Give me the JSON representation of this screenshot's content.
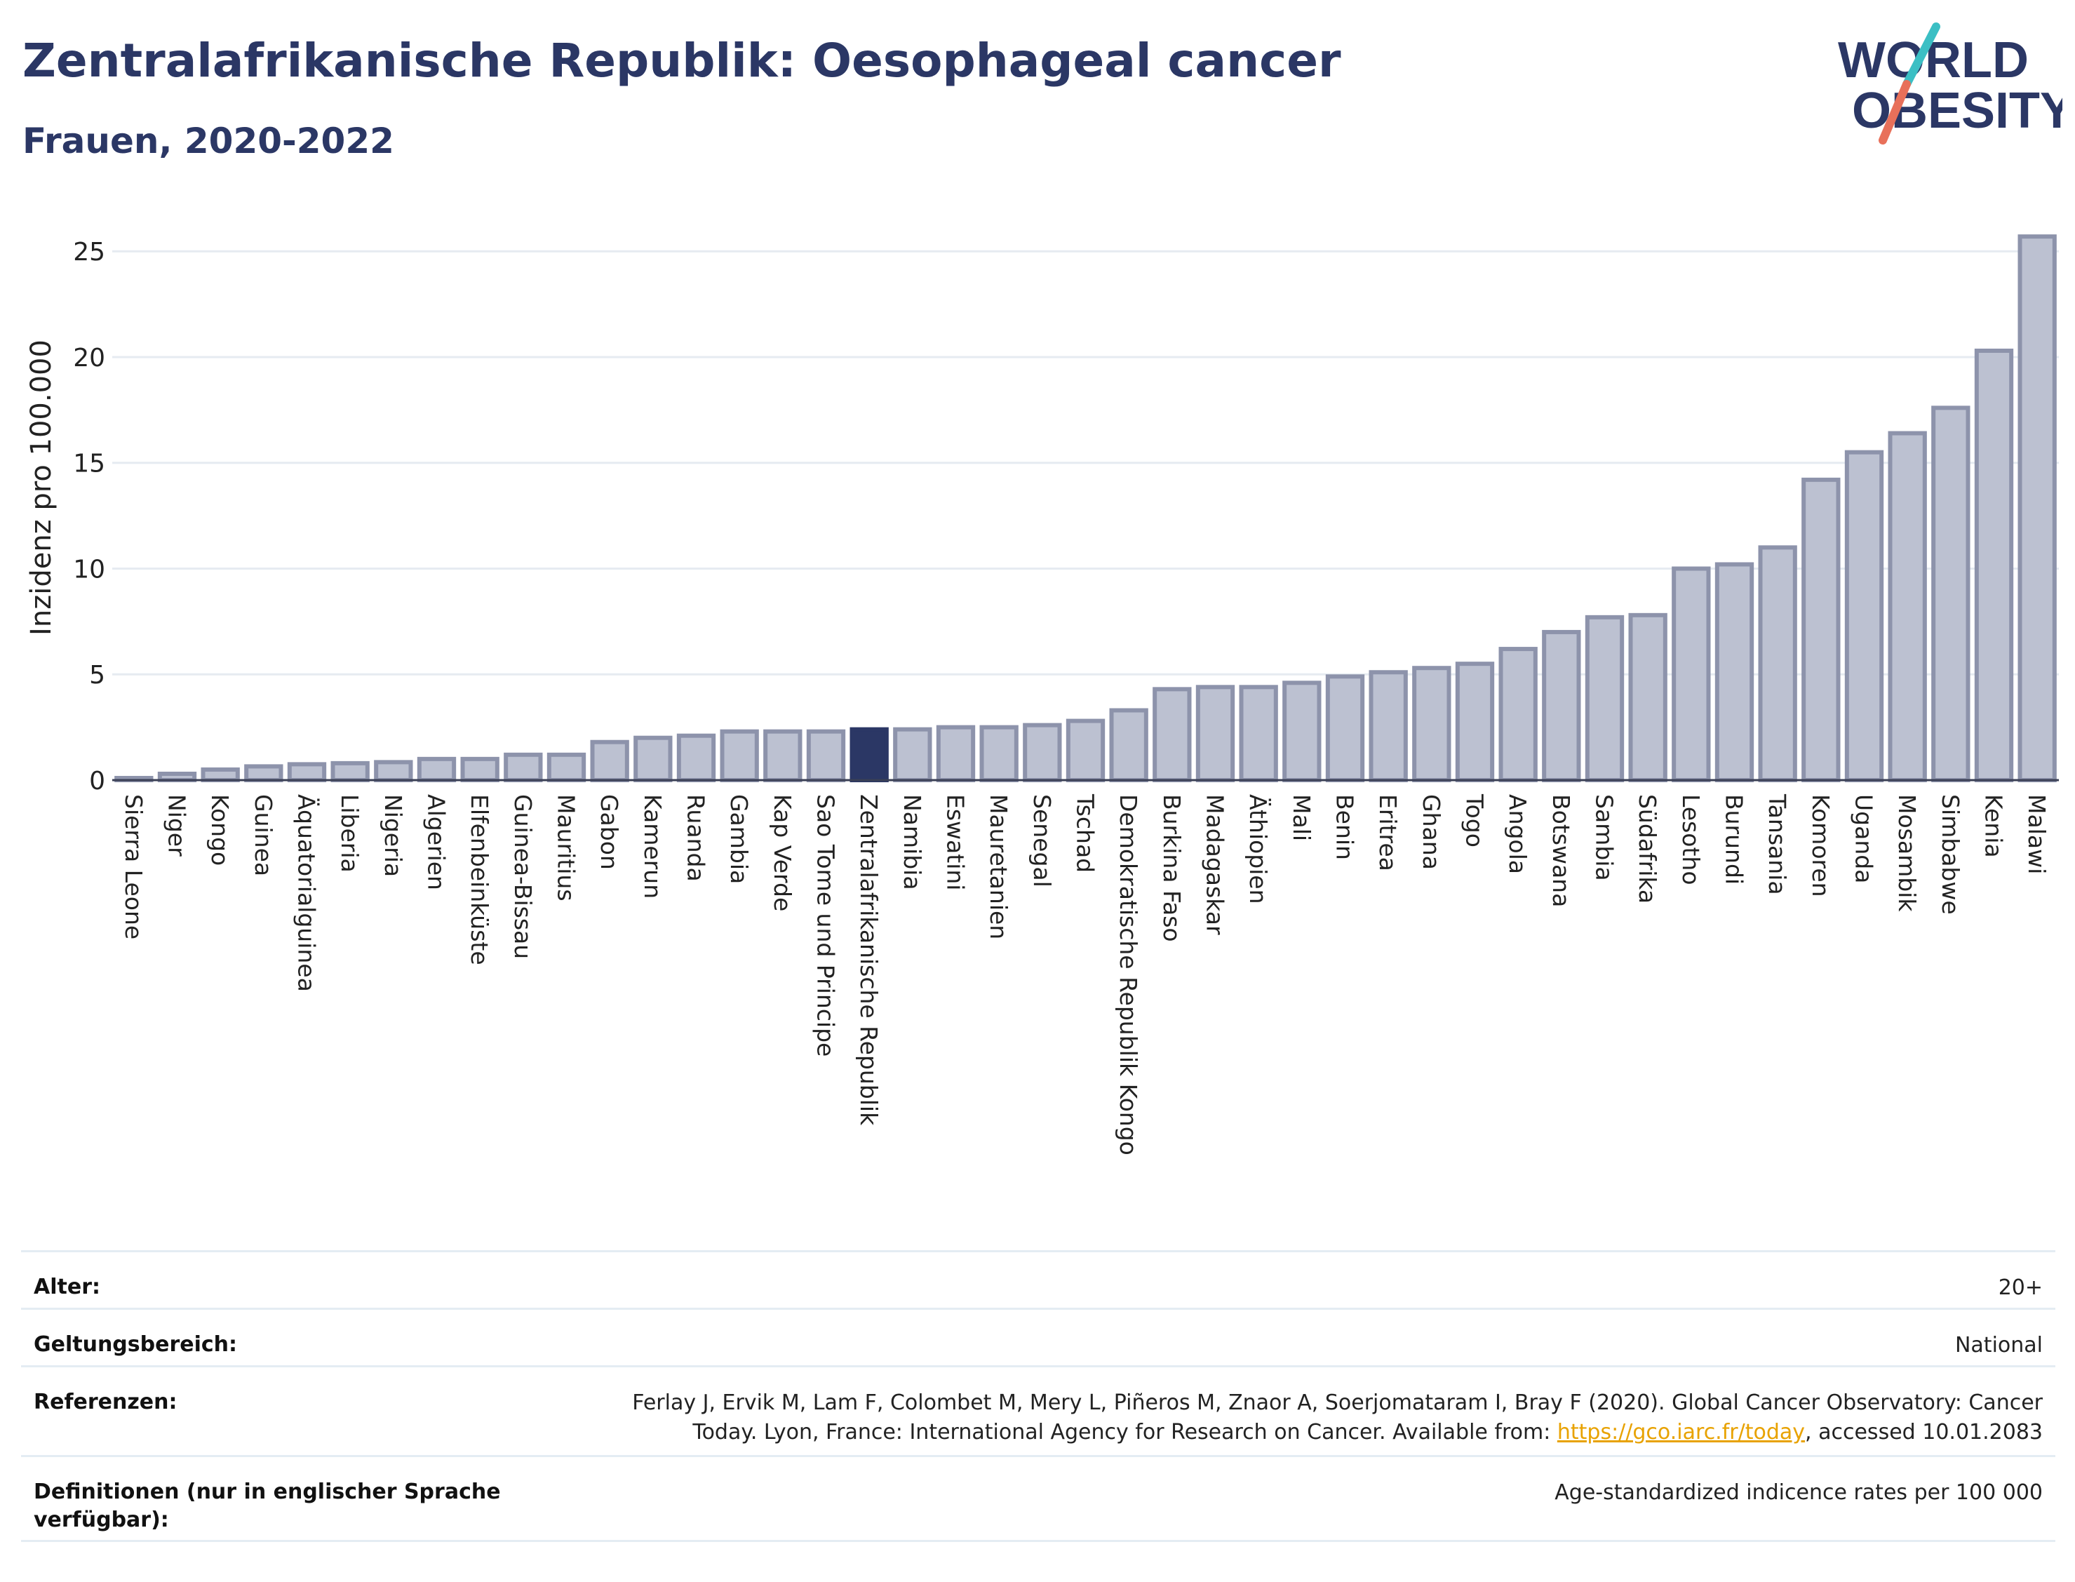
{
  "header": {
    "title": "Zentralafrikanische Republik: Oesophageal cancer",
    "subtitle": "Frauen, 2020-2022"
  },
  "logo": {
    "line1": "WORLD",
    "line2": "OBESITY",
    "accent_teal": "#3bbfc4",
    "accent_coral": "#e8705a",
    "text_color": "#2b3765"
  },
  "chart_data": {
    "type": "bar",
    "title": "Zentralafrikanische Republik: Oesophageal cancer",
    "subtitle": "Frauen, 2020-2022",
    "ylabel": "Inzidenz pro 100.000",
    "ylim": [
      0,
      26.5
    ],
    "yticks": [
      0,
      5,
      10,
      15,
      20,
      25
    ],
    "grid": true,
    "highlight": "Zentralafrikanische Republik",
    "colors": {
      "bar": "#bcc1d1",
      "bar_edge": "#8d93ab",
      "highlight": "#2b3765"
    },
    "categories": [
      "Sierra Leone",
      "Niger",
      "Kongo",
      "Guinea",
      "Äquatorialguinea",
      "Liberia",
      "Nigeria",
      "Algerien",
      "Elfenbeinküste",
      "Guinea-Bissau",
      "Mauritius",
      "Gabon",
      "Kamerun",
      "Ruanda",
      "Gambia",
      "Kap Verde",
      "Sao Tome und Principe",
      "Zentralafrikanische Republik",
      "Namibia",
      "Eswatini",
      "Mauretanien",
      "Senegal",
      "Tschad",
      "Demokratische Republik Kongo",
      "Burkina Faso",
      "Madagaskar",
      "Äthiopien",
      "Mali",
      "Benin",
      "Eritrea",
      "Ghana",
      "Togo",
      "Angola",
      "Botswana",
      "Sambia",
      "Südafrika",
      "Lesotho",
      "Burundi",
      "Tansania",
      "Komoren",
      "Uganda",
      "Mosambik",
      "Simbabwe",
      "Kenia",
      "Malawi"
    ],
    "values": [
      0.1,
      0.3,
      0.5,
      0.65,
      0.75,
      0.8,
      0.85,
      1.0,
      1.0,
      1.2,
      1.2,
      1.8,
      2.0,
      2.1,
      2.3,
      2.3,
      2.3,
      2.4,
      2.4,
      2.5,
      2.5,
      2.6,
      2.8,
      3.3,
      4.3,
      4.4,
      4.4,
      4.6,
      4.9,
      5.1,
      5.3,
      5.5,
      6.2,
      7.0,
      7.7,
      7.8,
      10.0,
      10.2,
      11.0,
      14.2,
      15.5,
      16.4,
      17.6,
      20.3,
      25.7
    ]
  },
  "meta": {
    "rows": [
      {
        "key": "Alter:",
        "value": "20+"
      },
      {
        "key": "Geltungsbereich:",
        "value": "National"
      },
      {
        "key": "Referenzen:",
        "value_line1": "Ferlay J, Ervik M, Lam F, Colombet M, Mery L, Piñeros M, Znaor A, Soerjomataram I, Bray F (2020). Global Cancer Observatory: Cancer",
        "value_pre": "Today. Lyon, France: International Agency for Research on Cancer. Available from: ",
        "link": "https://gco.iarc.fr/today",
        "value_post": ", accessed 10.01.2083"
      },
      {
        "key": "Definitionen (nur in englischer Sprache verfügbar):",
        "value": "Age-standardized indicence rates per 100 000"
      }
    ]
  }
}
